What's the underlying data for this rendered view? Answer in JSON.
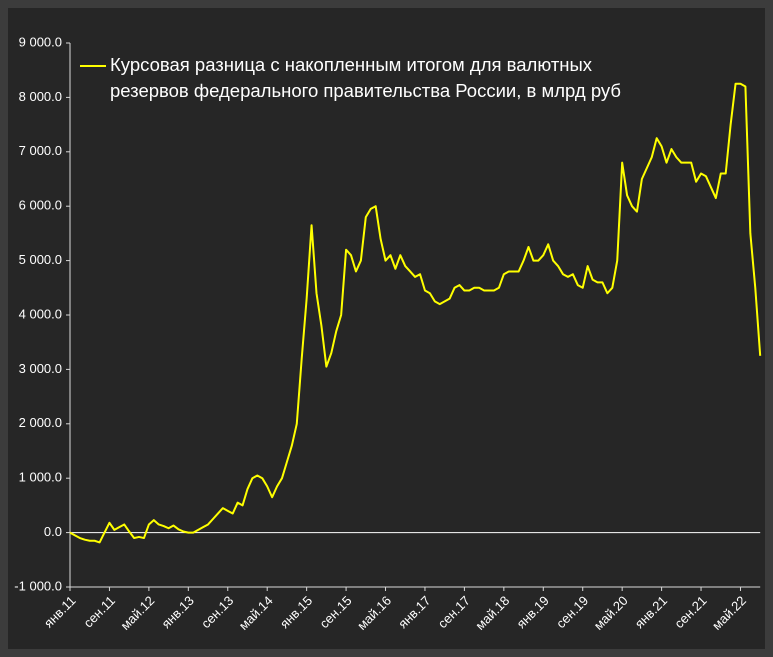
{
  "chart_data": {
    "type": "line",
    "categories": [
      "янв.11",
      null,
      null,
      null,
      null,
      null,
      null,
      null,
      "сен.11",
      null,
      null,
      null,
      null,
      null,
      null,
      null,
      "май.12",
      null,
      null,
      null,
      null,
      null,
      null,
      null,
      "янв.13",
      null,
      null,
      null,
      null,
      null,
      null,
      null,
      "сен.13",
      null,
      null,
      null,
      null,
      null,
      null,
      null,
      "май.14",
      null,
      null,
      null,
      null,
      null,
      null,
      null,
      "янв.15",
      null,
      null,
      null,
      null,
      null,
      null,
      null,
      "сен.15",
      null,
      null,
      null,
      null,
      null,
      null,
      null,
      "май.16",
      null,
      null,
      null,
      null,
      null,
      null,
      null,
      "янв.17",
      null,
      null,
      null,
      null,
      null,
      null,
      null,
      "сен.17",
      null,
      null,
      null,
      null,
      null,
      null,
      null,
      "май.18",
      null,
      null,
      null,
      null,
      null,
      null,
      null,
      "янв.19",
      null,
      null,
      null,
      null,
      null,
      null,
      null,
      "сен.19",
      null,
      null,
      null,
      null,
      null,
      null,
      null,
      "май.20",
      null,
      null,
      null,
      null,
      null,
      null,
      null,
      "янв.21",
      null,
      null,
      null,
      null,
      null,
      null,
      null,
      "сен.21",
      null,
      null,
      null,
      null,
      null,
      null,
      null,
      "май.22",
      null,
      null,
      null,
      null
    ],
    "series": [
      {
        "name": "Курсовая разница с накопленным итогом для валютных резервов федерального правительства России, в млрд руб",
        "color": "#ffff00",
        "values": [
          0,
          -50,
          -100,
          -130,
          -150,
          -150,
          -180,
          0,
          180,
          50,
          100,
          150,
          20,
          -100,
          -80,
          -100,
          150,
          230,
          150,
          120,
          80,
          130,
          60,
          20,
          0,
          0,
          50,
          100,
          150,
          250,
          350,
          450,
          400,
          350,
          550,
          500,
          800,
          1000,
          1050,
          1000,
          850,
          650,
          850,
          1000,
          1300,
          1600,
          2000,
          3200,
          4300,
          5650,
          4400,
          3800,
          3050,
          3300,
          3700,
          4000,
          5200,
          5100,
          4800,
          5000,
          5800,
          5950,
          6000,
          5400,
          5000,
          5100,
          4850,
          5100,
          4900,
          4800,
          4700,
          4750,
          4450,
          4400,
          4250,
          4200,
          4250,
          4300,
          4500,
          4550,
          4450,
          4450,
          4500,
          4500,
          4450,
          4450,
          4450,
          4500,
          4750,
          4800,
          4800,
          4800,
          5000,
          5250,
          5000,
          5000,
          5100,
          5300,
          5000,
          4900,
          4750,
          4700,
          4750,
          4550,
          4500,
          4900,
          4650,
          4600,
          4600,
          4400,
          4500,
          5000,
          6800,
          6200,
          6000,
          5900,
          6500,
          6700,
          6900,
          7250,
          7100,
          6800,
          7050,
          6900,
          6800,
          6800,
          6800,
          6450,
          6600,
          6550,
          6350,
          6150,
          6600,
          6600,
          7500,
          8250,
          8250,
          8200,
          5500,
          4500,
          3250
        ]
      }
    ],
    "ylim": [
      -1000,
      9000
    ],
    "yticks": [
      {
        "value": -1000,
        "label": "-1 000.0"
      },
      {
        "value": 0,
        "label": "0.0"
      },
      {
        "value": 1000,
        "label": "1 000.0"
      },
      {
        "value": 2000,
        "label": "2 000.0"
      },
      {
        "value": 3000,
        "label": "3 000.0"
      },
      {
        "value": 4000,
        "label": "4 000.0"
      },
      {
        "value": 5000,
        "label": "5 000.0"
      },
      {
        "value": 6000,
        "label": "6 000.0"
      },
      {
        "value": 7000,
        "label": "7 000.0"
      },
      {
        "value": 8000,
        "label": "8 000.0"
      },
      {
        "value": 9000,
        "label": "9 000.0"
      }
    ],
    "grid": false,
    "legend": "top-left"
  }
}
